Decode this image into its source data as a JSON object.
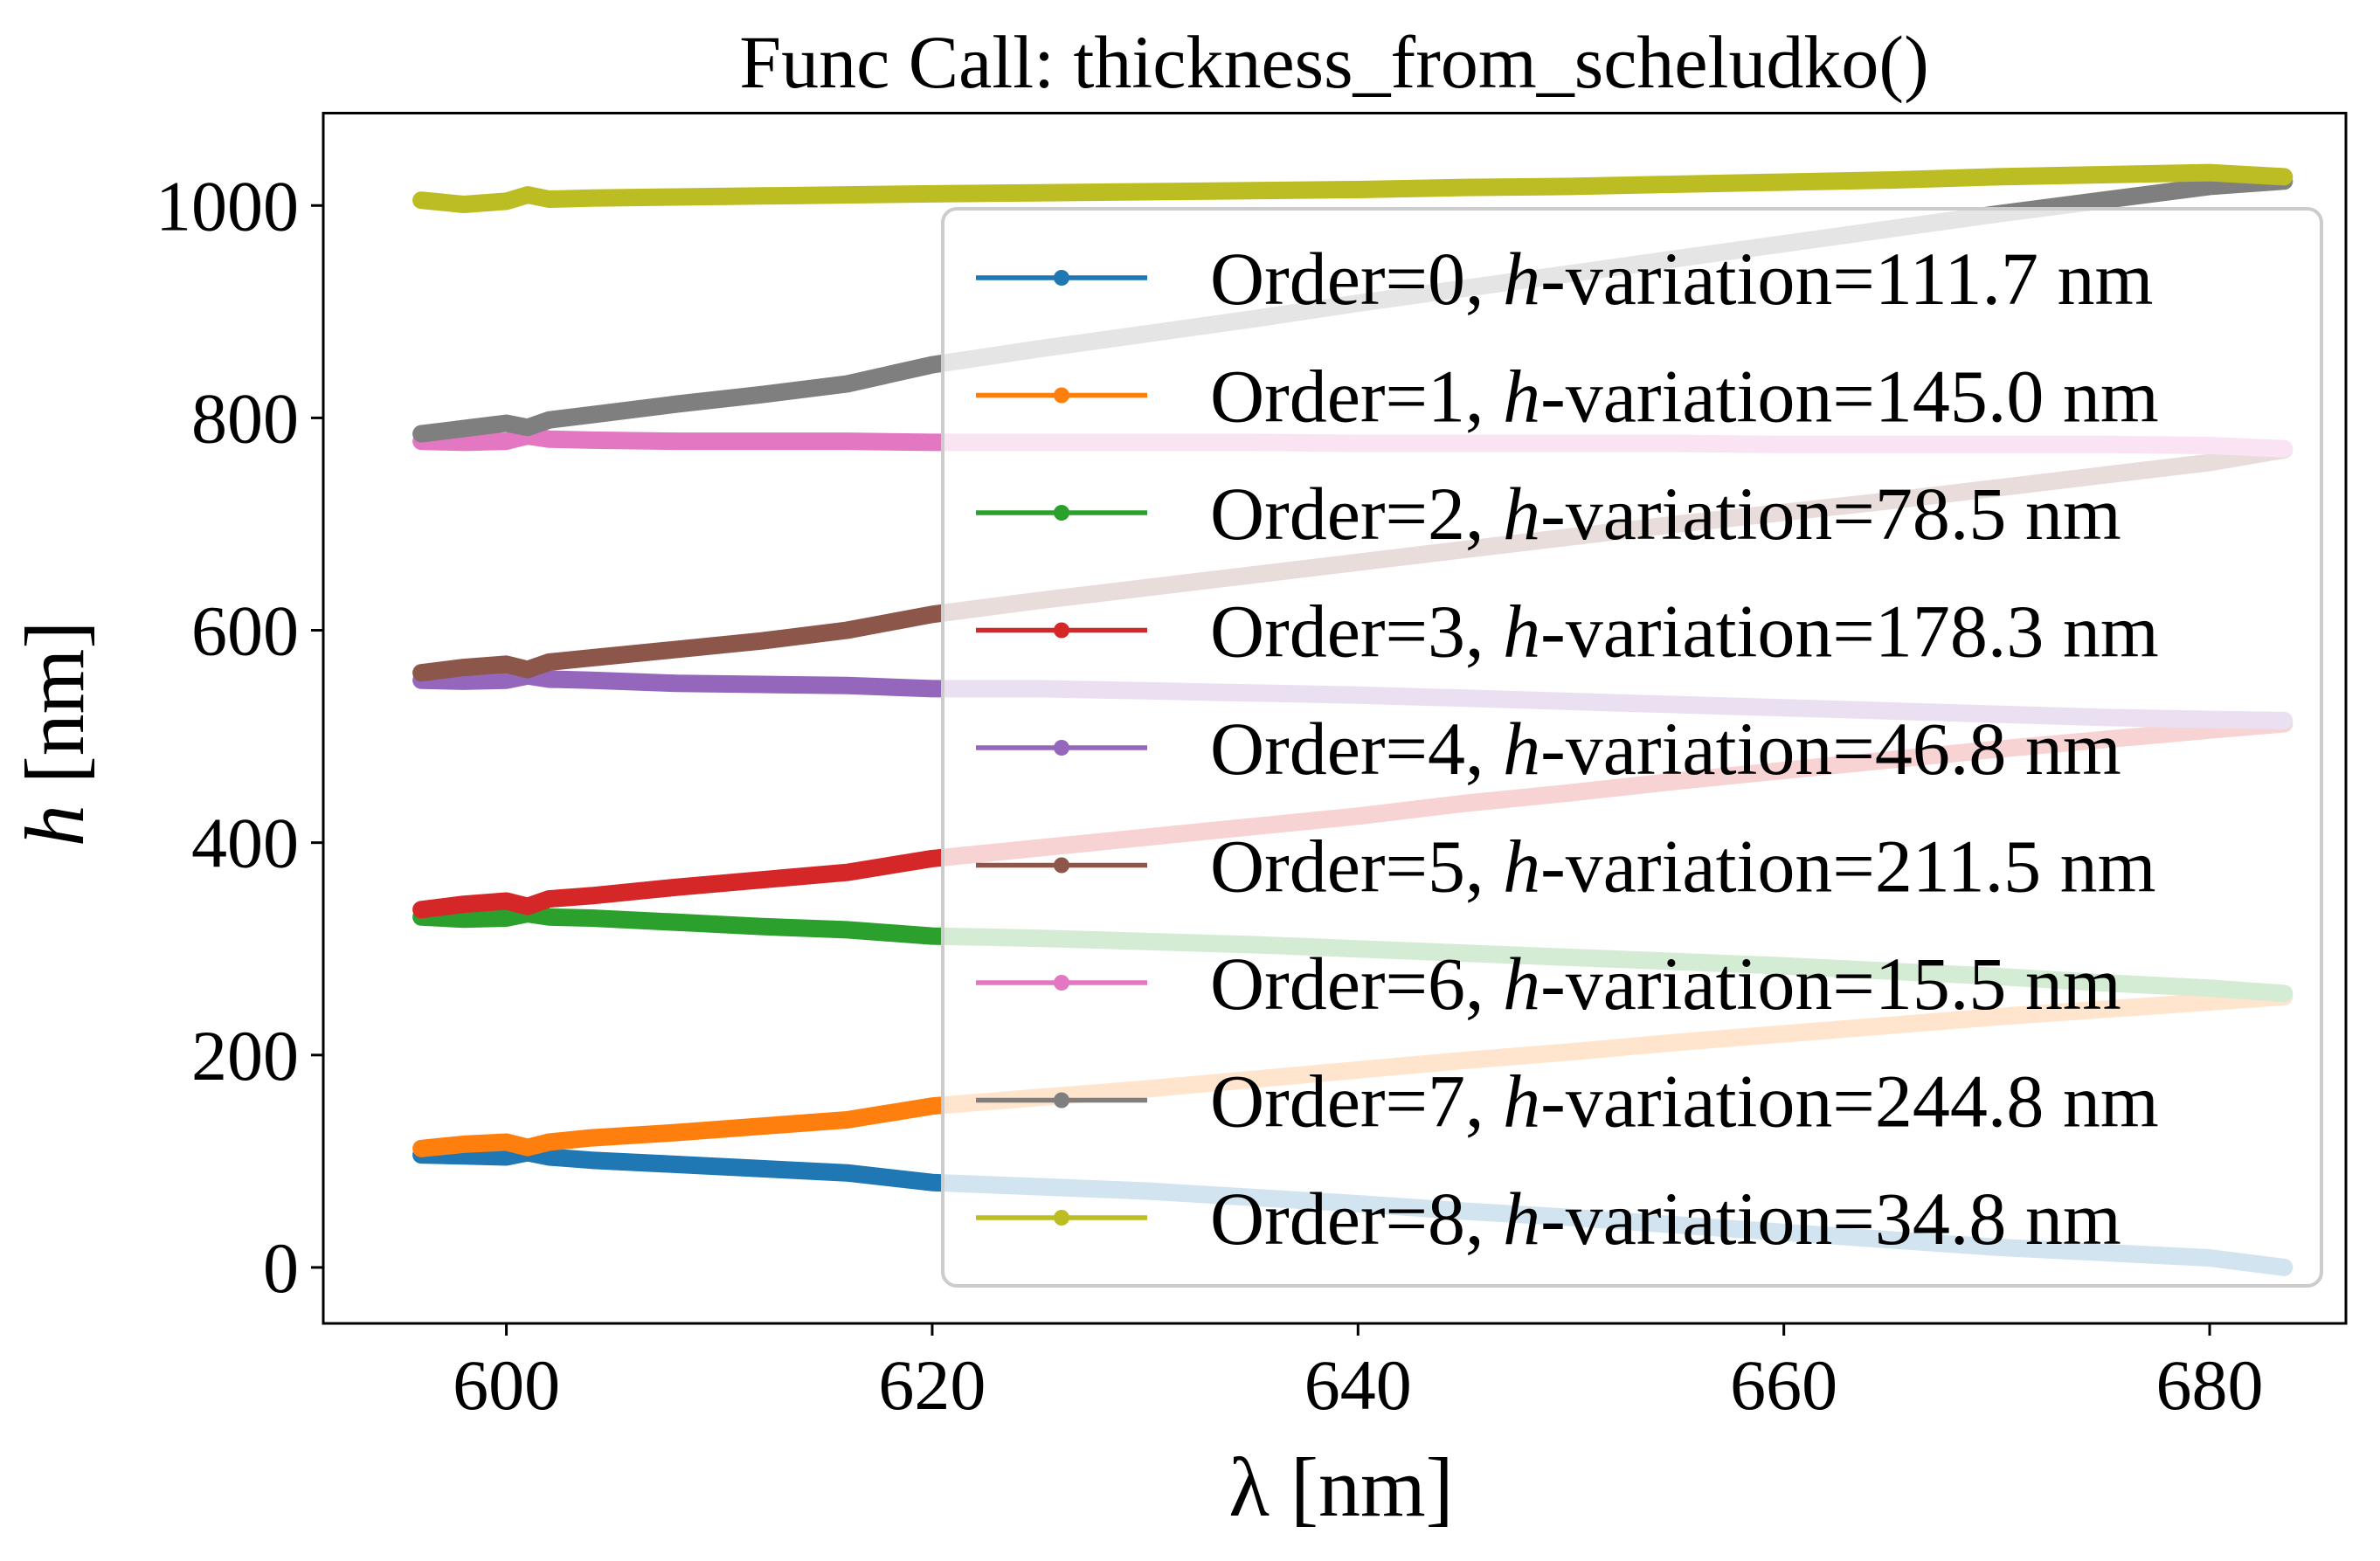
{
  "chart_data": {
    "type": "line",
    "title": "Func Call: thickness_from_scheludko()",
    "xlabel": "λ [nm]",
    "ylabel": "h [nm]",
    "xlim": [
      591.4,
      686.4
    ],
    "ylim": [
      -52.7,
      1087
    ],
    "xticks": [
      600,
      620,
      640,
      660,
      680
    ],
    "yticks": [
      0,
      200,
      400,
      600,
      800,
      1000
    ],
    "grid": false,
    "legend_placement": "right",
    "x": [
      596,
      598,
      600,
      601,
      602,
      604,
      608,
      612,
      616,
      620,
      625,
      630,
      635,
      640,
      645,
      650,
      655,
      660,
      665,
      670,
      675,
      680,
      683.5
    ],
    "series": [
      {
        "name": "Order=0, h-variation=111.7 nm",
        "color": "#1f77b4",
        "values": [
          106,
          105,
          104,
          108,
          104,
          101,
          97,
          93,
          89,
          80,
          76,
          72,
          66,
          60,
          53,
          47,
          40,
          33,
          26,
          19,
          14,
          9,
          0
        ]
      },
      {
        "name": "Order=1, h-variation=145.0 nm",
        "color": "#ff7f0e",
        "values": [
          112,
          116,
          118,
          113,
          118,
          122,
          127,
          133,
          139,
          152,
          160,
          168,
          177,
          186,
          195,
          203,
          212,
          220,
          228,
          236,
          243,
          250,
          255
        ]
      },
      {
        "name": "Order=2, h-variation=78.5 nm",
        "color": "#2ca02c",
        "values": [
          330,
          328,
          329,
          333,
          330,
          329,
          325,
          321,
          318,
          312,
          310,
          307,
          304,
          300,
          296,
          292,
          288,
          284,
          279,
          274,
          268,
          263,
          258
        ]
      },
      {
        "name": "Order=3, h-variation=178.3 nm",
        "color": "#d62728",
        "values": [
          337,
          342,
          345,
          340,
          347,
          350,
          358,
          365,
          372,
          385,
          395,
          405,
          415,
          425,
          437,
          447,
          458,
          468,
          478,
          488,
          497,
          506,
          512
        ]
      },
      {
        "name": "Order=4, h-variation=46.8 nm",
        "color": "#9467bd",
        "values": [
          553,
          552,
          553,
          557,
          554,
          553,
          550,
          549,
          548,
          545,
          545,
          543,
          541,
          539,
          536,
          533,
          530,
          527,
          524,
          521,
          518,
          516,
          515
        ]
      },
      {
        "name": "Order=5, h-variation=211.5 nm",
        "color": "#8c564b",
        "values": [
          560,
          565,
          568,
          563,
          570,
          574,
          582,
          590,
          600,
          615,
          628,
          640,
          652,
          664,
          676,
          688,
          700,
          711,
          722,
          734,
          746,
          758,
          770
        ]
      },
      {
        "name": "Order=6, h-variation=15.5 nm",
        "color": "#e377c2",
        "values": [
          778,
          777,
          778,
          783,
          780,
          779,
          778,
          778,
          778,
          777,
          777,
          777,
          777,
          776,
          776,
          776,
          776,
          775,
          775,
          775,
          775,
          774,
          771
        ]
      },
      {
        "name": "Order=7, h-variation=244.8 nm",
        "color": "#7f7f7f",
        "values": [
          785,
          790,
          795,
          791,
          798,
          803,
          813,
          822,
          832,
          850,
          865,
          879,
          893,
          908,
          922,
          936,
          950,
          964,
          978,
          992,
          1005,
          1018,
          1023
        ]
      },
      {
        "name": "Order=8, h-variation=34.8 nm",
        "color": "#bcbd22",
        "values": [
          1005,
          1001,
          1004,
          1010,
          1006,
          1007,
          1008,
          1009,
          1010,
          1011,
          1012,
          1013,
          1014,
          1015,
          1017,
          1018,
          1020,
          1022,
          1024,
          1027,
          1029,
          1031,
          1027
        ]
      }
    ]
  }
}
